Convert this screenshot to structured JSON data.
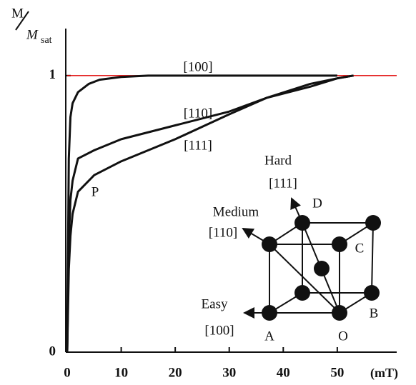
{
  "chart_data": {
    "type": "line",
    "ylabel": {
      "numerator": "M",
      "denominator": "M",
      "subscript": "sat"
    },
    "xlabel": "(mT)",
    "xlim": [
      0,
      61
    ],
    "ylim": [
      0,
      1.17
    ],
    "xticks": [
      0,
      10,
      20,
      30,
      40,
      50
    ],
    "yticks": [
      0,
      1
    ],
    "hline": {
      "value": 1,
      "color": "#e00000"
    },
    "series": [
      {
        "name": "[100]",
        "color": "#111111",
        "x": [
          0,
          0.3,
          0.6,
          1,
          2,
          4,
          6,
          10,
          15,
          50
        ],
        "values": [
          0,
          0.7,
          0.85,
          0.9,
          0.94,
          0.97,
          0.985,
          0.995,
          1,
          1
        ]
      },
      {
        "name": "[110]",
        "color": "#111111",
        "x": [
          0,
          0.3,
          0.6,
          1,
          2,
          5,
          10,
          20,
          30,
          37,
          45,
          50,
          53
        ],
        "values": [
          0,
          0.4,
          0.55,
          0.62,
          0.7,
          0.73,
          0.77,
          0.82,
          0.87,
          0.92,
          0.96,
          0.99,
          1
        ]
      },
      {
        "name": "[111]",
        "color": "#111111",
        "x": [
          0,
          0.3,
          0.6,
          1,
          2,
          5,
          10,
          20,
          30,
          37,
          45,
          50,
          53
        ],
        "values": [
          0,
          0.3,
          0.42,
          0.5,
          0.58,
          0.64,
          0.69,
          0.77,
          0.86,
          0.92,
          0.97,
          0.99,
          1
        ]
      }
    ],
    "annotations": [
      "P"
    ],
    "inset_labels": [
      "Hard",
      "[111]",
      "D",
      "Medium",
      "[110]",
      "C",
      "Easy",
      "[100]",
      "A",
      "O",
      "B"
    ]
  }
}
